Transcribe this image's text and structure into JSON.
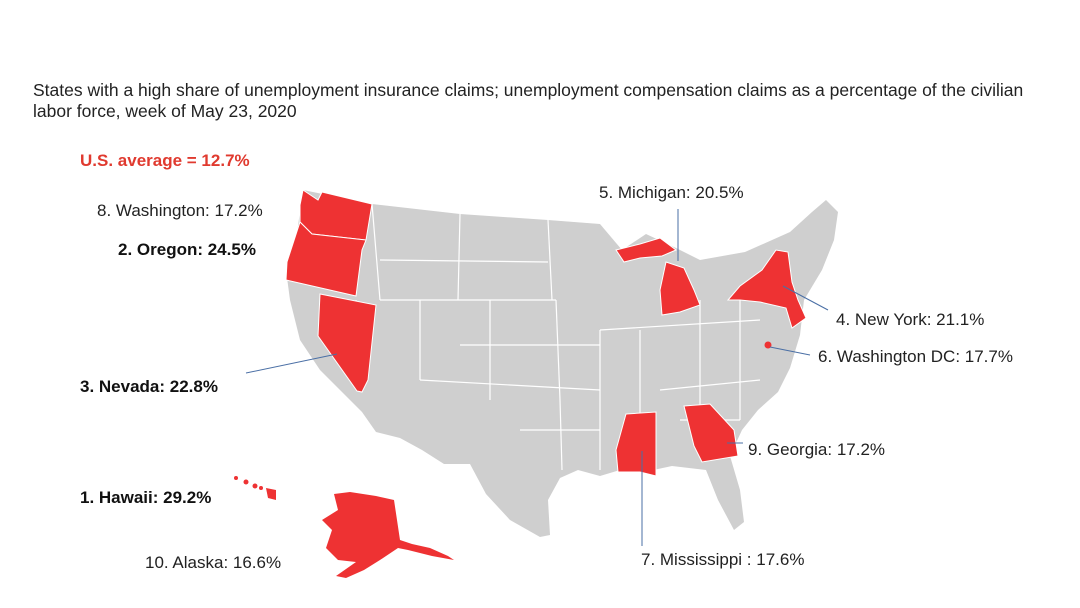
{
  "title": "States with a high share of unemployment insurance claims; unemployment compensation claims as a percentage of the civilian labor force,  week of May 23, 2020",
  "us_average": "U.S. average = 12.7%",
  "colors": {
    "highlight": "#ee3233",
    "base": "#cfcfcf",
    "leader": "#4a6fa5"
  },
  "labels": {
    "hawaii": "1. Hawaii: 29.2%",
    "oregon": "2. Oregon: 24.5%",
    "nevada": "3. Nevada: 22.8%",
    "new_york": "4. New York: 21.1%",
    "michigan": "5. Michigan: 20.5%",
    "dc": "6. Washington DC: 17.7%",
    "mississippi": "7. Mississippi : 17.6%",
    "washington": "8. Washington: 17.2%",
    "georgia": "9. Georgia: 17.2%",
    "alaska": "10. Alaska: 16.6%"
  },
  "ranking": [
    {
      "rank": 1,
      "state": "Hawaii",
      "pct": 29.2
    },
    {
      "rank": 2,
      "state": "Oregon",
      "pct": 24.5
    },
    {
      "rank": 3,
      "state": "Nevada",
      "pct": 22.8
    },
    {
      "rank": 4,
      "state": "New York",
      "pct": 21.1
    },
    {
      "rank": 5,
      "state": "Michigan",
      "pct": 20.5
    },
    {
      "rank": 6,
      "state": "Washington DC",
      "pct": 17.7
    },
    {
      "rank": 7,
      "state": "Mississippi",
      "pct": 17.6
    },
    {
      "rank": 8,
      "state": "Washington",
      "pct": 17.2
    },
    {
      "rank": 9,
      "state": "Georgia",
      "pct": 17.2
    },
    {
      "rank": 10,
      "state": "Alaska",
      "pct": 16.6
    }
  ]
}
